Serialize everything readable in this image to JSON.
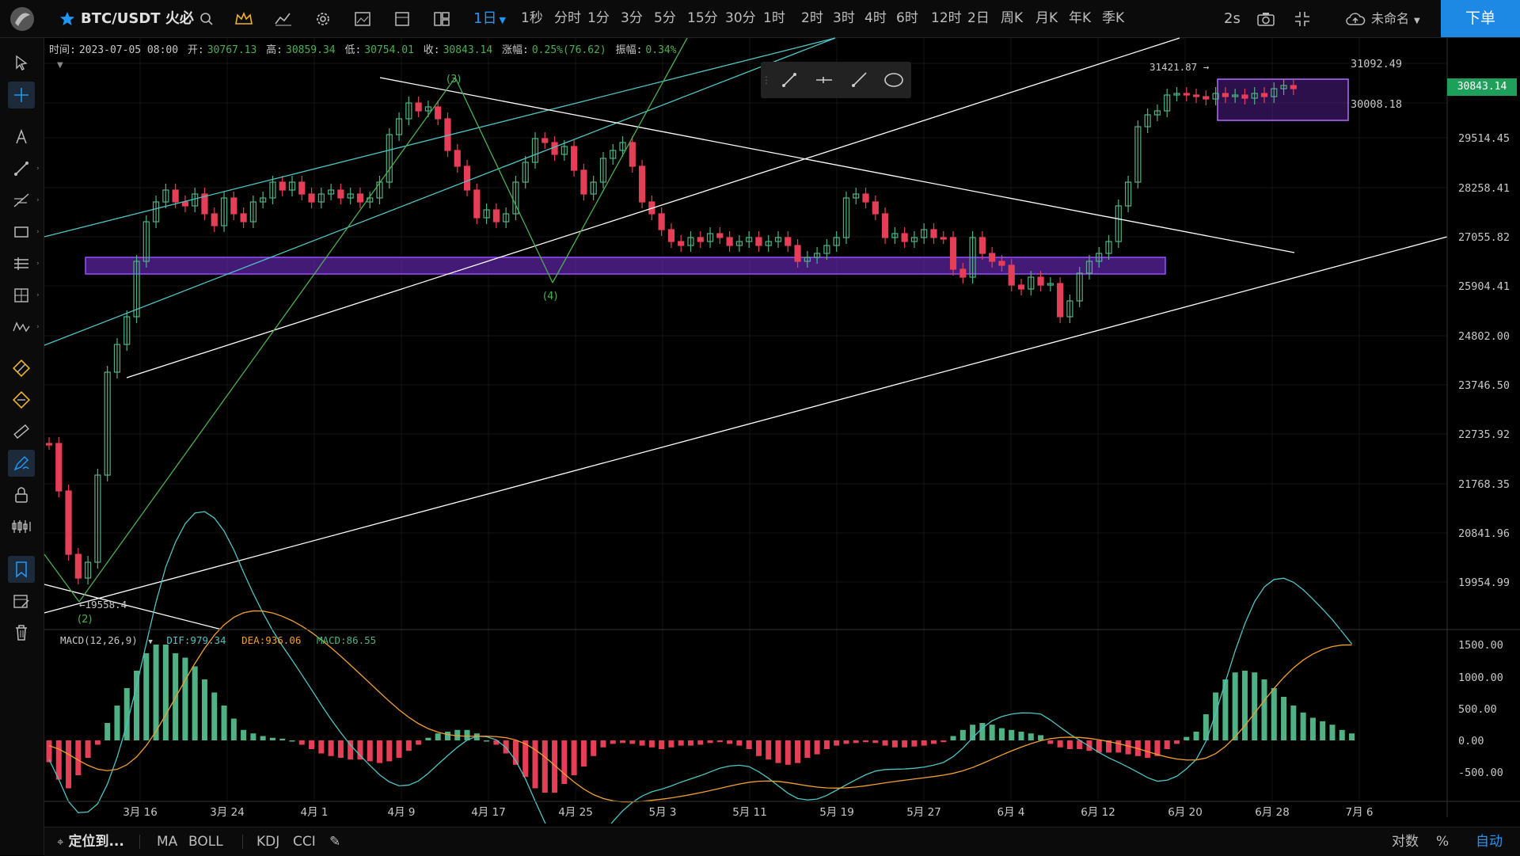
{
  "topbar": {
    "symbol": "BTC/USDT 火必",
    "interval_selected": "1日",
    "intervals": [
      "1秒",
      "分时",
      "1分",
      "3分",
      "5分",
      "15分",
      "30分",
      "1时",
      "2时",
      "3时",
      "4时",
      "6时",
      "12时",
      "2日",
      "周K",
      "月K",
      "年K",
      "季K"
    ],
    "refresh": "2s",
    "layout_name": "未命名",
    "order_label": "下单",
    "accent": "#1e88e5"
  },
  "ohlc": {
    "time_label": "时间:",
    "time": "2023-07-05 08:00",
    "open_label": "开:",
    "open": "30767.13",
    "high_label": "高:",
    "high": "30859.34",
    "low_label": "低:",
    "low": "30754.01",
    "close_label": "收:",
    "close": "30843.14",
    "change_label": "涨幅:",
    "change": "0.25%(76.62)",
    "amp_label": "振幅:",
    "amp": "0.34%"
  },
  "macd_legend": {
    "name": "MACD(12,26,9)",
    "dif": "DIF:979.34",
    "dea": "DEA:936.06",
    "macd": "MACD:86.55"
  },
  "price_axis": [
    "31092.49",
    "30008.18",
    "29514.45",
    "28258.41",
    "27055.82",
    "25904.41",
    "24802.00",
    "23746.50",
    "22735.92",
    "21768.35",
    "20841.96",
    "19954.99"
  ],
  "current_price": "30843.14",
  "high_marker": "31421.87",
  "low_marker": "19558.4",
  "macd_axis": [
    "1500.00",
    "1000.00",
    "500.00",
    "0.00",
    "-500.00"
  ],
  "date_axis": [
    "3月 16",
    "3月 24",
    "4月 1",
    "4月 9",
    "4月 17",
    "4月 25",
    "5月 3",
    "5月 11",
    "5月 19",
    "5月 27",
    "6月 4",
    "6月 12",
    "6月 20",
    "6月 28",
    "7月 6"
  ],
  "wave_labels": [
    "(3)",
    "(4)",
    "(2)"
  ],
  "bottombar": {
    "locate": "定位到...",
    "indicators": [
      "MA",
      "BOLL",
      "KDJ",
      "CCI"
    ],
    "log": "对数",
    "pct": "%",
    "auto": "自动"
  },
  "colors": {
    "up": "#4fb184",
    "down": "#e53e57",
    "dif": "#4fc3c3",
    "dea": "#f0a030",
    "zone": "#7b2fd8"
  }
}
